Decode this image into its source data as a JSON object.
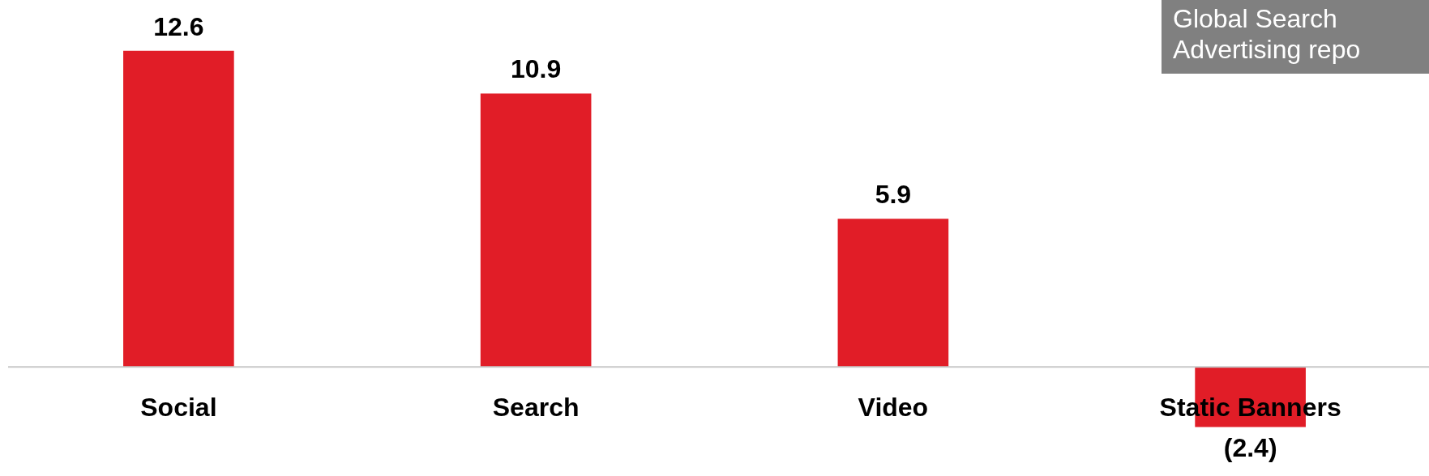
{
  "chart_data": {
    "type": "bar",
    "categories": [
      "Social",
      "Search",
      "Video",
      "Static Banners"
    ],
    "values": [
      12.6,
      10.9,
      5.9,
      -2.4
    ],
    "color": "#e11d27",
    "value_labels": [
      "12.6",
      "10.9",
      "5.9",
      "(2.4)"
    ],
    "annotations": [
      "Global Search Advertising repo"
    ]
  }
}
